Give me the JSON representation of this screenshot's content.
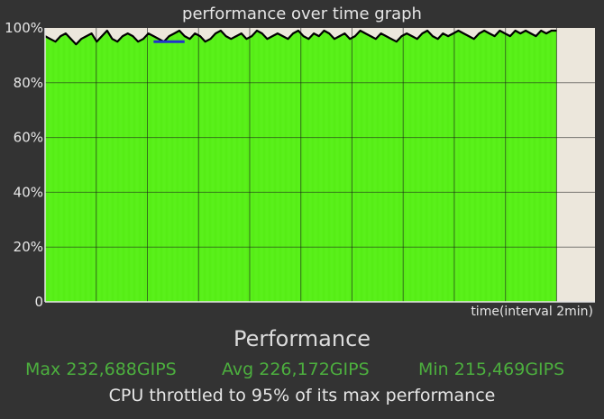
{
  "chart_data": {
    "type": "area",
    "title": "performance over time graph",
    "xlabel": "time(interval 2min)",
    "ylabel": "",
    "ylim": [
      0,
      100
    ],
    "yticks": [
      {
        "value": 0,
        "label": "0"
      },
      {
        "value": 20,
        "label": "20%"
      },
      {
        "value": 40,
        "label": "40%"
      },
      {
        "value": 60,
        "label": "60%"
      },
      {
        "value": 80,
        "label": "80%"
      },
      {
        "value": 100,
        "label": "100%"
      }
    ],
    "x_intervals_total": 10,
    "x_intervals_filled": 10,
    "grid": true,
    "series": [
      {
        "color": "#000000",
        "values": [
          97,
          96,
          95,
          97,
          98,
          96,
          94,
          96,
          97,
          98,
          95,
          97,
          99,
          96,
          95,
          97,
          98,
          97,
          95,
          96,
          98,
          97,
          96,
          95,
          97,
          98,
          99,
          97,
          96,
          98,
          97,
          95,
          96,
          98,
          99,
          97,
          96,
          97,
          98,
          96,
          97,
          99,
          98,
          96,
          97,
          98,
          97,
          96,
          98,
          99,
          97,
          96,
          98,
          97,
          99,
          98,
          96,
          97,
          98,
          96,
          97,
          99,
          98,
          97,
          96,
          98,
          97,
          96,
          95,
          97,
          98,
          97,
          96,
          98,
          99,
          97,
          96,
          98,
          97,
          98,
          99,
          98,
          97,
          96,
          98,
          99,
          98,
          97,
          99,
          98,
          97,
          99,
          98,
          99,
          98,
          97,
          99,
          98,
          99,
          99
        ]
      }
    ],
    "highlight": {
      "color": "#2233cc",
      "x_start": 21,
      "x_end": 27,
      "value": 95
    }
  },
  "performance": {
    "heading": "Performance",
    "max": "Max 232,688GIPS",
    "avg": "Avg 226,172GIPS",
    "min": "Min 215,469GIPS",
    "throttle": "CPU throttled to 95% of its max performance"
  },
  "colors": {
    "background": "#333333",
    "fill": "#58f018",
    "plot_background": "#ece7dc",
    "line": "#000000",
    "stat_text": "#4caf3e"
  }
}
